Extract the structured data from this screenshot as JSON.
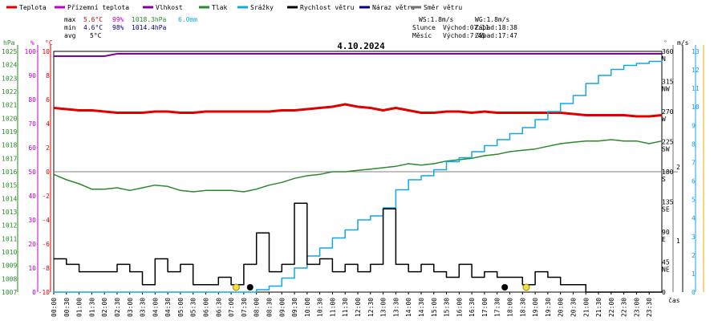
{
  "chart_data": {
    "type": "line",
    "title": "4.10.2024",
    "legend": [
      {
        "name": "Teplota",
        "color": "#e00000"
      },
      {
        "name": "Přízemní teplota",
        "color": "#c000c0"
      },
      {
        "name": "Vlhkost",
        "color": "#8000a0"
      },
      {
        "name": "Tlak",
        "color": "#2a8a2a"
      },
      {
        "name": "Srážky",
        "color": "#10a8e0"
      },
      {
        "name": "Rychlost větru",
        "color": "#000000"
      },
      {
        "name": "Náraz větru",
        "color": "#000080"
      },
      {
        "name": "Směr větru",
        "color": "#707070"
      }
    ],
    "stats": {
      "max_label": "max",
      "max_temp": "5.6°C",
      "max_hum": "99%",
      "max_press": "1018.3hPa",
      "max_rain": "6.0mm",
      "min_label": "min",
      "min_temp": "4.6°C",
      "min_hum": "98%",
      "min_press": "1014.4hPa",
      "avg_label": "avg",
      "avg_temp": "5°C"
    },
    "info": {
      "ws": "WS:1.8m/s",
      "wg": "WG:1.8m/s",
      "sun_label": "Slunce",
      "sun_rise": "Východ:07:11",
      "sun_set": "Západ:18:38",
      "moon_label": "Měsíc",
      "moon_rise": "Východ:7:45",
      "moon_set": "Západ:17:47"
    },
    "axes": {
      "hpa_unit": "hPa",
      "pct_unit": "%",
      "temp_unit": "°C",
      "dir_unit": "°",
      "ms_unit": "m/s",
      "x_label": "čas",
      "hpa_ticks": [
        "1025",
        "1024",
        "1023",
        "1022",
        "1021",
        "1020",
        "1019",
        "1018",
        "1017",
        "1016",
        "1015",
        "1014",
        "1013",
        "1012",
        "1011",
        "1010",
        "1009",
        "1008",
        "1007"
      ],
      "pct_ticks": [
        "100",
        "90",
        "80",
        "70",
        "60",
        "50",
        "40",
        "30",
        "20",
        "10",
        "0"
      ],
      "temp_ticks": [
        "10",
        "8",
        "6",
        "4",
        "2",
        "0",
        "-2",
        "-4",
        "-6",
        "-8",
        "-10"
      ],
      "temp_range": [
        -10,
        10
      ],
      "pressure_range": [
        1007,
        1025
      ],
      "dir_ticks": [
        {
          "deg": "360",
          "card": "N"
        },
        {
          "deg": "315",
          "card": "NW"
        },
        {
          "deg": "270",
          "card": "W"
        },
        {
          "deg": "225",
          "card": "SW"
        },
        {
          "deg": "180",
          "card": "S"
        },
        {
          "deg": "135",
          "card": "SE"
        },
        {
          "deg": "90",
          "card": "E"
        },
        {
          "deg": "45",
          "card": "NE"
        },
        {
          "deg": "0",
          "card": ""
        }
      ],
      "ms_ticks": [
        "13",
        "12",
        "11",
        "10",
        "9",
        "8",
        "7",
        "6",
        "5",
        "4",
        "3",
        "2",
        "1",
        "0"
      ],
      "rain_ticks": [
        "2",
        "1"
      ],
      "x_ticks": [
        "00:00",
        "00:30",
        "01:00",
        "01:30",
        "02:00",
        "02:30",
        "03:00",
        "03:30",
        "04:00",
        "04:30",
        "05:00",
        "05:30",
        "06:00",
        "06:30",
        "07:00",
        "07:30",
        "08:00",
        "08:30",
        "09:00",
        "09:30",
        "10:00",
        "10:30",
        "11:00",
        "11:30",
        "12:00",
        "12:30",
        "13:00",
        "13:30",
        "14:00",
        "14:30",
        "15:00",
        "15:30",
        "16:00",
        "16:30",
        "17:00",
        "17:30",
        "18:00",
        "18:30",
        "19:00",
        "19:30",
        "20:00",
        "20:30",
        "21:00",
        "21:30",
        "22:00",
        "22:30",
        "23:00",
        "23:30"
      ]
    },
    "series": [
      {
        "name": "Teplota",
        "unit": "°C",
        "x": [
          0,
          0.5,
          1,
          1.5,
          2,
          2.5,
          3,
          3.5,
          4,
          4.5,
          5,
          5.5,
          6,
          6.5,
          7,
          7.5,
          8,
          8.5,
          9,
          9.5,
          10,
          10.5,
          11,
          11.5,
          12,
          12.5,
          13,
          13.5,
          14,
          14.5,
          15,
          15.5,
          16,
          16.5,
          17,
          17.5,
          18,
          18.5,
          19,
          19.5,
          20,
          20.5,
          21,
          21.5,
          22,
          22.5,
          23,
          23.5,
          24
        ],
        "y": [
          5.3,
          5.2,
          5.1,
          5.1,
          5.0,
          4.9,
          4.9,
          4.9,
          5.0,
          5.0,
          4.9,
          4.9,
          5.0,
          5.0,
          5.0,
          5.0,
          5.0,
          5.0,
          5.1,
          5.1,
          5.2,
          5.3,
          5.4,
          5.6,
          5.4,
          5.3,
          5.1,
          5.3,
          5.1,
          4.9,
          4.9,
          5.0,
          5.0,
          4.9,
          5.0,
          4.9,
          4.9,
          4.9,
          4.9,
          4.9,
          4.9,
          4.8,
          4.7,
          4.7,
          4.7,
          4.7,
          4.6,
          4.6,
          4.7
        ]
      },
      {
        "name": "Vlhkost",
        "unit": "%",
        "x": [
          0,
          0.5,
          1,
          1.5,
          2,
          2.5,
          3,
          3.5,
          4,
          4.5,
          5,
          5.5,
          6,
          6.5,
          7,
          7.5,
          8,
          8.5,
          9,
          9.5,
          10,
          10.5,
          11,
          11.5,
          12,
          12.5,
          13,
          13.5,
          14,
          14.5,
          15,
          15.5,
          16,
          16.5,
          17,
          17.5,
          18,
          18.5,
          19,
          19.5,
          20,
          20.5,
          21,
          21.5,
          22,
          22.5,
          23,
          23.5,
          24
        ],
        "y": [
          98,
          98,
          98,
          98,
          98,
          99,
          99,
          99,
          99,
          99,
          99,
          99,
          99,
          99,
          99,
          99,
          99,
          99,
          99,
          99,
          99,
          99,
          99,
          99,
          99,
          99,
          99,
          99,
          99,
          99,
          99,
          99,
          99,
          99,
          99,
          99,
          99,
          99,
          99,
          99,
          99,
          99,
          99,
          99,
          99,
          99,
          99,
          99,
          99
        ]
      },
      {
        "name": "Tlak",
        "unit": "hPa",
        "x": [
          0,
          0.5,
          1,
          1.5,
          2,
          2.5,
          3,
          3.5,
          4,
          4.5,
          5,
          5.5,
          6,
          6.5,
          7,
          7.5,
          8,
          8.5,
          9,
          9.5,
          10,
          10.5,
          11,
          11.5,
          12,
          12.5,
          13,
          13.5,
          14,
          14.5,
          15,
          15.5,
          16,
          16.5,
          17,
          17.5,
          18,
          18.5,
          19,
          19.5,
          20,
          20.5,
          21,
          21.5,
          22,
          22.5,
          23,
          23.5,
          24
        ],
        "y": [
          1015.8,
          1015.4,
          1015.1,
          1014.7,
          1014.7,
          1014.8,
          1014.6,
          1014.8,
          1015.0,
          1014.9,
          1014.6,
          1014.5,
          1014.6,
          1014.6,
          1014.6,
          1014.5,
          1014.7,
          1015.0,
          1015.2,
          1015.5,
          1015.7,
          1015.8,
          1016.0,
          1016.0,
          1016.1,
          1016.2,
          1016.3,
          1016.4,
          1016.6,
          1016.5,
          1016.6,
          1016.8,
          1016.9,
          1017.0,
          1017.2,
          1017.3,
          1017.5,
          1017.6,
          1017.7,
          1017.9,
          1018.1,
          1018.2,
          1018.3,
          1018.3,
          1018.4,
          1018.3,
          1018.3,
          1018.1,
          1018.3
        ]
      },
      {
        "name": "Srážky",
        "unit": "mm",
        "x": [
          0,
          7.5,
          8,
          8.5,
          9,
          9.5,
          10,
          10.5,
          11,
          11.5,
          12,
          12.5,
          13,
          13.5,
          14,
          14.5,
          15,
          15.5,
          16,
          16.5,
          17,
          17.5,
          18,
          18.5,
          19,
          19.5,
          20,
          20.5,
          21,
          21.5,
          22,
          22.5,
          23,
          23.5,
          24
        ],
        "y": [
          0,
          0,
          0.06,
          0.15,
          0.35,
          0.6,
          0.9,
          1.1,
          1.35,
          1.55,
          1.8,
          1.9,
          2.1,
          2.55,
          2.8,
          2.9,
          3.05,
          3.25,
          3.35,
          3.5,
          3.65,
          3.8,
          3.95,
          4.1,
          4.3,
          4.5,
          4.7,
          4.9,
          5.2,
          5.4,
          5.55,
          5.65,
          5.7,
          5.75,
          5.8
        ]
      },
      {
        "name": "Rychlost větru",
        "unit": "m/s",
        "x": [
          0,
          0.5,
          1,
          1.5,
          2,
          2.5,
          3,
          3.5,
          4,
          4.5,
          5,
          5.5,
          6,
          6.5,
          7,
          7.5,
          8,
          8.5,
          9,
          9.5,
          10,
          10.5,
          11,
          11.5,
          12,
          12.5,
          13,
          13.5,
          14,
          14.5,
          15,
          15.5,
          16,
          16.5,
          17,
          17.5,
          18,
          18.5,
          19,
          19.5,
          20,
          20.5,
          21,
          21.5,
          22,
          22.5,
          23,
          23.5,
          24
        ],
        "y": [
          1.8,
          1.5,
          1.1,
          1.1,
          1.1,
          1.5,
          1.1,
          0.4,
          1.8,
          1.1,
          1.5,
          0.4,
          0.4,
          0.8,
          0.4,
          1.5,
          3.2,
          1.1,
          1.5,
          4.8,
          1.5,
          1.8,
          1.1,
          1.5,
          1.1,
          1.5,
          4.5,
          1.5,
          1.1,
          1.5,
          1.1,
          0.8,
          1.5,
          0.8,
          1.1,
          0.8,
          0.8,
          0.4,
          1.1,
          0.8,
          0.4,
          0.4,
          0,
          0,
          0,
          0,
          0,
          0,
          0
        ]
      }
    ]
  }
}
